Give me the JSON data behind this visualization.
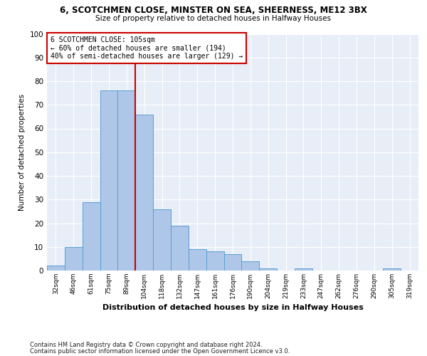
{
  "title1": "6, SCOTCHMEN CLOSE, MINSTER ON SEA, SHEERNESS, ME12 3BX",
  "title2": "Size of property relative to detached houses in Halfway Houses",
  "xlabel": "Distribution of detached houses by size in Halfway Houses",
  "ylabel": "Number of detached properties",
  "categories": [
    "32sqm",
    "46sqm",
    "61sqm",
    "75sqm",
    "89sqm",
    "104sqm",
    "118sqm",
    "132sqm",
    "147sqm",
    "161sqm",
    "176sqm",
    "190sqm",
    "204sqm",
    "219sqm",
    "233sqm",
    "247sqm",
    "262sqm",
    "276sqm",
    "290sqm",
    "305sqm",
    "319sqm"
  ],
  "values": [
    2,
    10,
    29,
    76,
    76,
    66,
    26,
    19,
    9,
    8,
    7,
    4,
    1,
    0,
    1,
    0,
    0,
    0,
    0,
    1,
    0
  ],
  "bar_color": "#aec6e8",
  "bar_edge_color": "#5a9fd4",
  "vline_x_index": 5,
  "vline_color": "#cc0000",
  "annotation_line1": "6 SCOTCHMEN CLOSE: 105sqm",
  "annotation_line2": "← 60% of detached houses are smaller (194)",
  "annotation_line3": "40% of semi-detached houses are larger (129) →",
  "annotation_box_color": "#cc0000",
  "ylim": [
    0,
    100
  ],
  "yticks": [
    0,
    10,
    20,
    30,
    40,
    50,
    60,
    70,
    80,
    90,
    100
  ],
  "footnote1": "Contains HM Land Registry data © Crown copyright and database right 2024.",
  "footnote2": "Contains public sector information licensed under the Open Government Licence v3.0.",
  "bg_color": "#e8eef8",
  "grid_color": "#ffffff"
}
